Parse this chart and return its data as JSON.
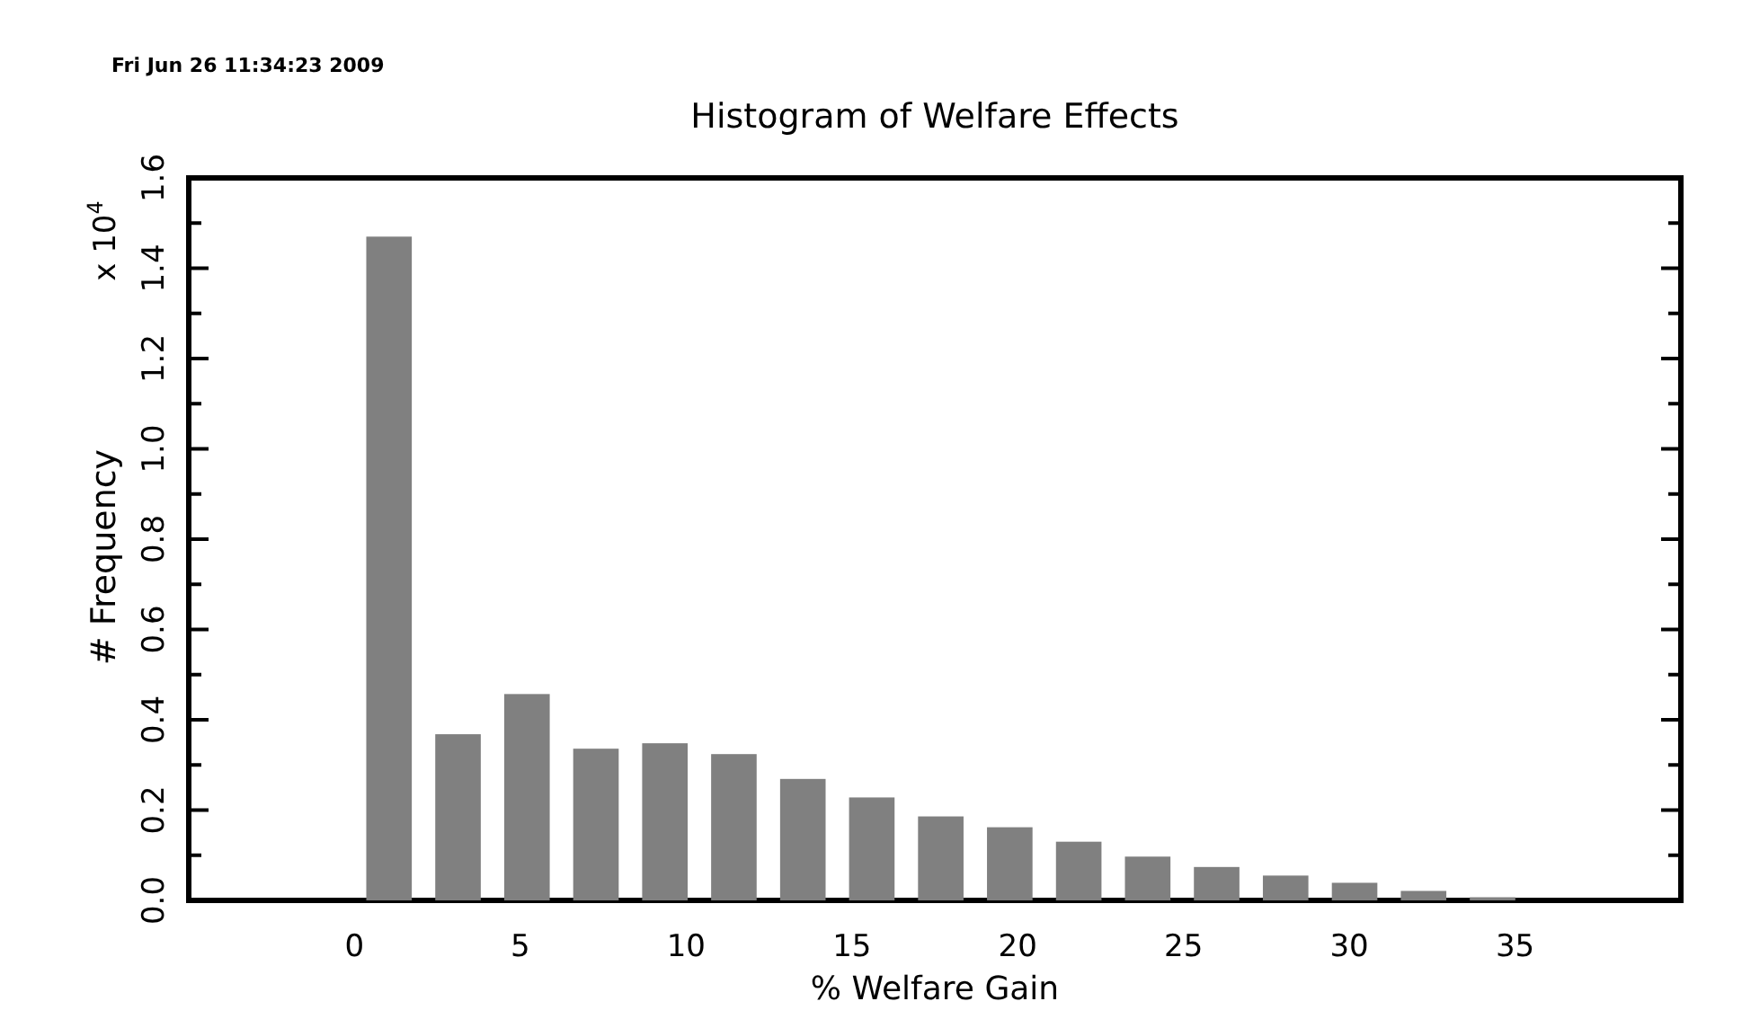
{
  "chart_data": {
    "type": "histogram",
    "title": "Histogram of Welfare Effects",
    "xlabel": "% Welfare Gain",
    "ylabel": "# Frequency",
    "annotations": [
      "Fri Jun 26 11:34:23 2009",
      "x 10$^{4}$"
    ],
    "bins": [
      0,
      2.08,
      4.16,
      6.24,
      8.32,
      10.4,
      12.48,
      14.56,
      16.64,
      18.72,
      20.8,
      22.88,
      24.96,
      27.04,
      29.12,
      31.2,
      33.28,
      35.36
    ],
    "values": [
      1.47,
      0.368,
      0.457,
      0.336,
      0.348,
      0.324,
      0.269,
      0.228,
      0.186,
      0.162,
      0.13,
      0.097,
      0.074,
      0.055,
      0.039,
      0.021,
      0.007
    ],
    "color": "#808080",
    "xlim": [
      -5,
      40
    ],
    "xticks": [
      0,
      5,
      10,
      15,
      20,
      25,
      30,
      35
    ],
    "ylim": [
      0,
      1.6
    ],
    "yticks": [
      {
        "value": 0,
        "label": "0.0"
      },
      {
        "value": 0.1,
        "label": null
      },
      {
        "value": 0.2,
        "label": "0.2"
      },
      {
        "value": 0.3,
        "label": null
      },
      {
        "value": 0.4,
        "label": "0.4"
      },
      {
        "value": 0.5,
        "label": null
      },
      {
        "value": 0.6,
        "label": "0.6"
      },
      {
        "value": 0.7,
        "label": null
      },
      {
        "value": 0.8,
        "label": "0.8"
      },
      {
        "value": 0.9,
        "label": null
      },
      {
        "value": 1.0,
        "label": "1.0"
      },
      {
        "value": 1.1,
        "label": null
      },
      {
        "value": 1.2,
        "label": "1.2"
      },
      {
        "value": 1.3,
        "label": null
      },
      {
        "value": 1.4,
        "label": "1.4"
      },
      {
        "value": 1.5,
        "label": null
      },
      {
        "value": 1.6,
        "label": "1.6"
      }
    ],
    "grid": false
  }
}
